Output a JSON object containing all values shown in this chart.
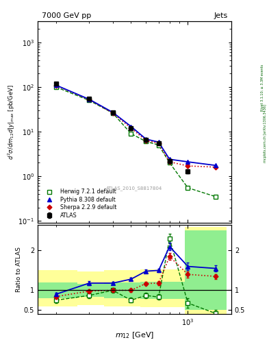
{
  "title_left": "7000 GeV pp",
  "title_right": "Jets",
  "watermark": "ATLAS_2010_S8817804",
  "right_label_top": "Rivet 3.1.10; ≥ 3.3M events",
  "right_label_bot": "mcplots.cern.ch [arXiv:1306.3436]",
  "m12": [
    200,
    300,
    400,
    500,
    600,
    700,
    800,
    1000,
    1400
  ],
  "atlas_y": [
    120,
    55,
    27,
    12.0,
    6.5,
    5.5,
    2.2,
    1.3,
    null
  ],
  "atlas_yerr": [
    8,
    3,
    1.5,
    0.8,
    0.4,
    0.4,
    0.2,
    0.15,
    null
  ],
  "herwig_y": [
    100,
    50,
    26,
    9.0,
    6.0,
    5.0,
    2.0,
    0.55,
    0.35
  ],
  "pythia_y": [
    110,
    53,
    27,
    13.0,
    6.8,
    5.8,
    2.4,
    2.1,
    1.75
  ],
  "sherpa_y": [
    108,
    52,
    26,
    12.0,
    6.3,
    5.5,
    2.1,
    1.7,
    1.6
  ],
  "ratio_herwig": [
    0.75,
    0.87,
    1.0,
    0.75,
    0.87,
    0.83,
    2.3,
    0.68,
    0.42
  ],
  "ratio_pythia": [
    0.9,
    1.18,
    1.18,
    1.28,
    1.48,
    1.5,
    2.1,
    1.6,
    1.55
  ],
  "ratio_sherpa": [
    0.84,
    0.98,
    1.0,
    1.0,
    1.17,
    1.18,
    1.85,
    1.4,
    1.35
  ],
  "ratio_herwig_errl": [
    0.07,
    0.07,
    0.06,
    0.06,
    0.07,
    0.07,
    0.12,
    0.12,
    0.08
  ],
  "ratio_herwig_erru": [
    0.07,
    0.07,
    0.06,
    0.06,
    0.07,
    0.07,
    0.12,
    0.12,
    0.08
  ],
  "ratio_pythia_errl": [
    0.04,
    0.05,
    0.04,
    0.04,
    0.05,
    0.05,
    0.1,
    0.09,
    0.07
  ],
  "ratio_pythia_erru": [
    0.04,
    0.05,
    0.04,
    0.04,
    0.05,
    0.05,
    0.1,
    0.09,
    0.07
  ],
  "ratio_sherpa_errl": [
    0.05,
    0.05,
    0.04,
    0.05,
    0.05,
    0.05,
    0.09,
    0.08,
    0.06
  ],
  "ratio_sherpa_erru": [
    0.05,
    0.05,
    0.04,
    0.05,
    0.05,
    0.05,
    0.09,
    0.08,
    0.06
  ],
  "band_edges": [
    160,
    260,
    360,
    560,
    760,
    960,
    1600
  ],
  "band_green_lo": [
    0.8,
    0.83,
    0.8,
    0.78,
    0.78,
    0.5,
    0.5
  ],
  "band_green_hi": [
    1.2,
    1.17,
    1.2,
    1.22,
    1.22,
    2.5,
    2.5
  ],
  "band_yellow_lo": [
    0.6,
    0.62,
    0.6,
    0.58,
    0.58,
    0.4,
    0.4
  ],
  "band_yellow_hi": [
    1.5,
    1.48,
    1.5,
    1.52,
    1.52,
    2.6,
    2.6
  ],
  "herwig_color": "#007700",
  "pythia_color": "#0000cc",
  "sherpa_color": "#cc0000",
  "atlas_color": "#000000",
  "green_band": "#90ee90",
  "yellow_band": "#ffff99"
}
